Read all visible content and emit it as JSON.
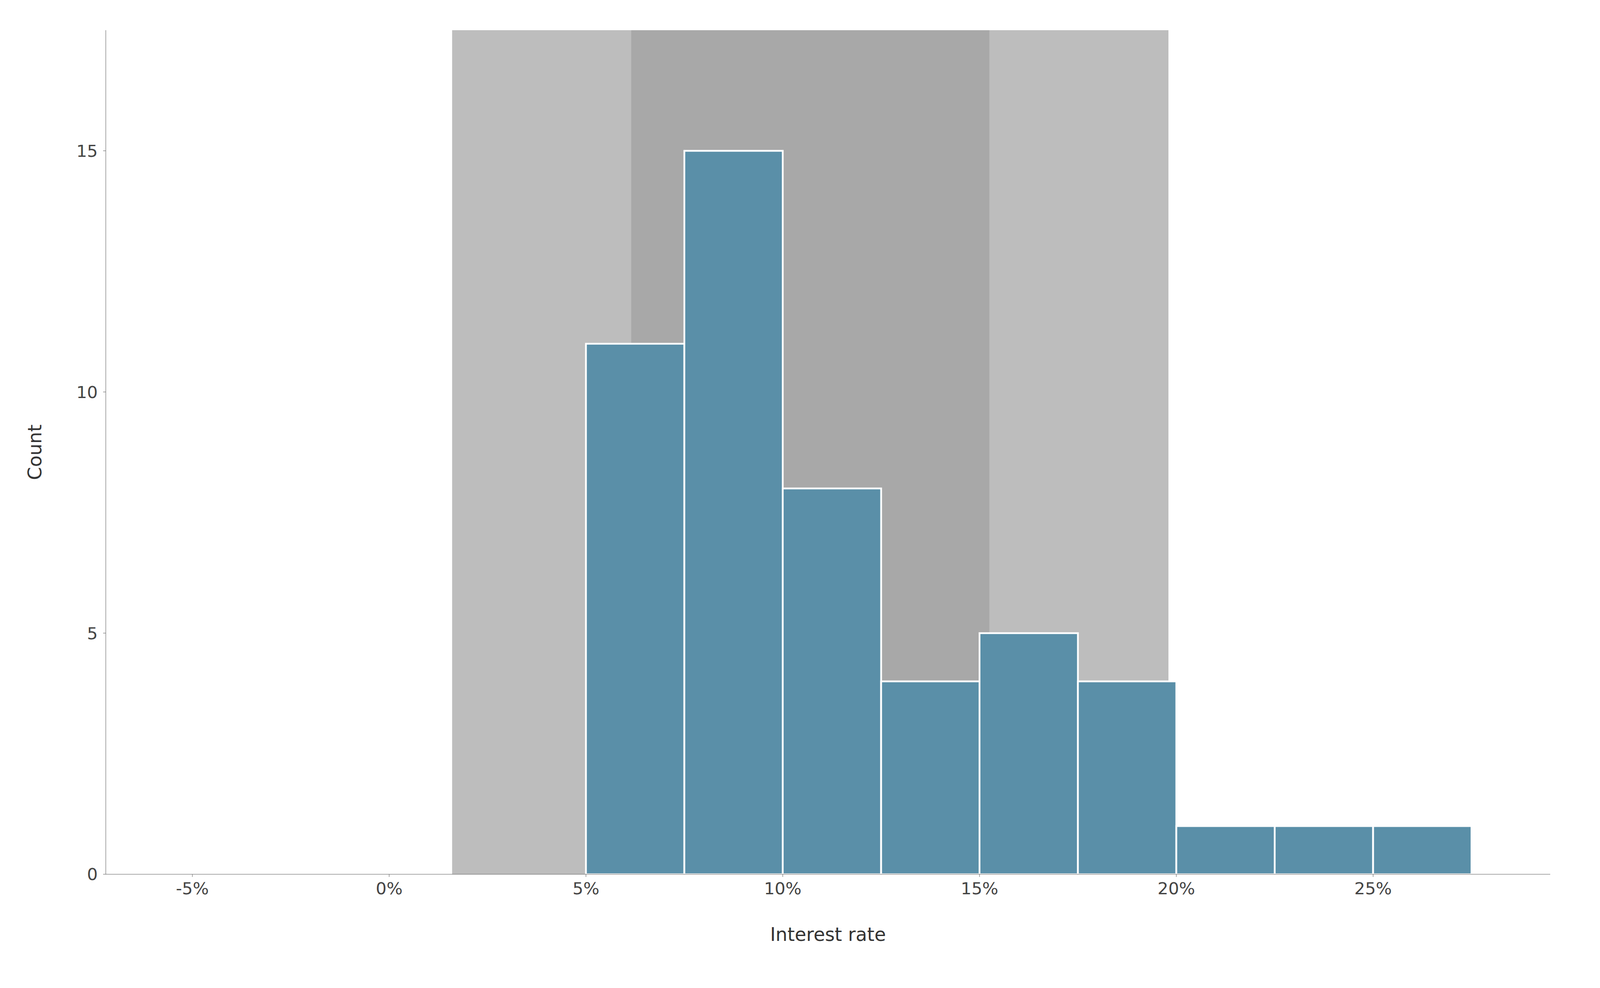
{
  "chart_data": {
    "type": "histogram",
    "xlabel": "Interest rate",
    "ylabel": "Count",
    "bins": [
      0.05,
      0.075,
      0.1,
      0.125,
      0.15,
      0.175,
      0.2,
      0.225,
      0.25,
      0.275
    ],
    "values": [
      11,
      15,
      8,
      4,
      5,
      4,
      1,
      1,
      1
    ],
    "color": "#5a8fa8",
    "xlim": [
      -0.072,
      0.295
    ],
    "ylim": [
      0,
      17.5
    ],
    "xticks": [
      {
        "value": -0.05,
        "label": "-5%"
      },
      {
        "value": 0.0,
        "label": "0%"
      },
      {
        "value": 0.05,
        "label": "5%"
      },
      {
        "value": 0.1,
        "label": "10%"
      },
      {
        "value": 0.15,
        "label": "15%"
      },
      {
        "value": 0.2,
        "label": "20%"
      },
      {
        "value": 0.25,
        "label": "25%"
      }
    ],
    "yticks": [
      0,
      5,
      10,
      15
    ],
    "grid": true,
    "bands": [
      {
        "from": 0.016,
        "to": 0.198,
        "color": "#bdbdbd"
      },
      {
        "from": 0.0615,
        "to": 0.1525,
        "color": "#a8a8a8"
      }
    ]
  }
}
